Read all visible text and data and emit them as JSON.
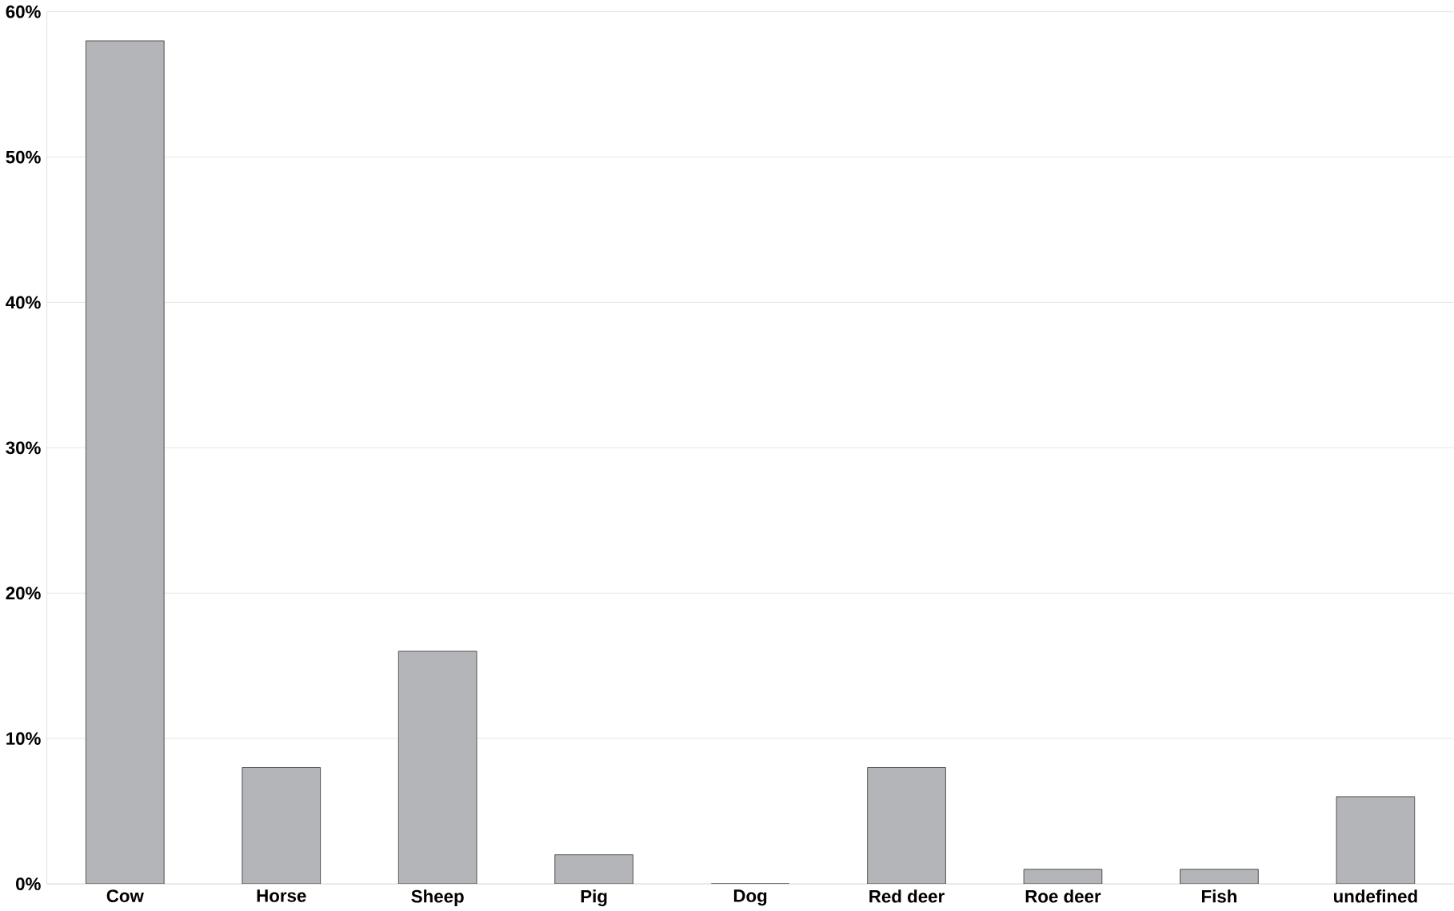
{
  "chart_data": {
    "type": "bar",
    "categories": [
      "Cow",
      "Horse",
      "Sheep",
      "Pig",
      "Dog",
      "Red deer",
      "Roe deer",
      "Fish",
      "undefined"
    ],
    "values": [
      58,
      8,
      16,
      2,
      0,
      8,
      1,
      1,
      6
    ],
    "color": "#b4b5b9",
    "ylim": [
      0,
      60
    ],
    "yticks": [
      {
        "value": 0,
        "label": "0%"
      },
      {
        "value": 10,
        "label": "10%"
      },
      {
        "value": 20,
        "label": "20%"
      },
      {
        "value": 30,
        "label": "30%"
      },
      {
        "value": 40,
        "label": "40%"
      },
      {
        "value": 50,
        "label": "50%"
      },
      {
        "value": 60,
        "label": "60%"
      }
    ],
    "grid": "y"
  }
}
